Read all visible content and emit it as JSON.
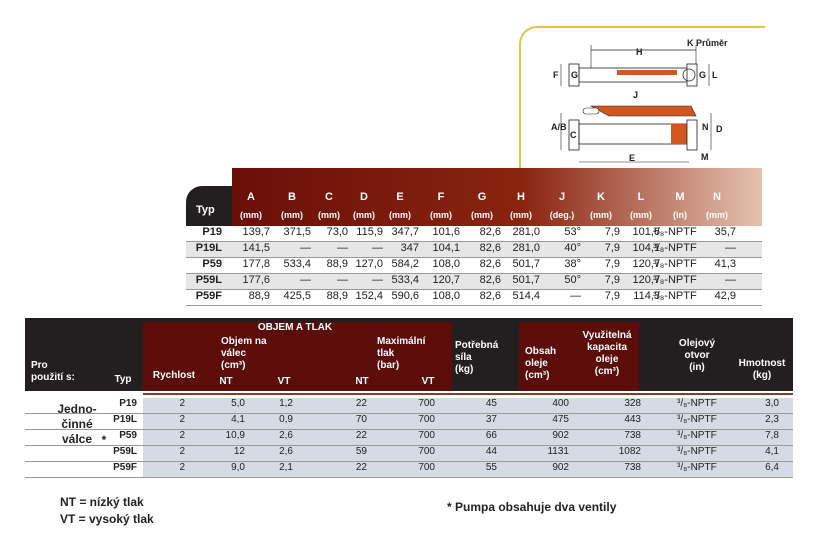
{
  "diagram": {
    "labels": [
      "H",
      "K Průměr",
      "F",
      "G",
      "G",
      "L",
      "J",
      "A/B",
      "C",
      "N",
      "D",
      "E",
      "M"
    ]
  },
  "dim_table": {
    "type_label": "Typ",
    "columns": [
      {
        "key": "A",
        "unit": "(mm)"
      },
      {
        "key": "B",
        "unit": "(mm)"
      },
      {
        "key": "C",
        "unit": "(mm)"
      },
      {
        "key": "D",
        "unit": "(mm)"
      },
      {
        "key": "E",
        "unit": "(mm)"
      },
      {
        "key": "F",
        "unit": "(mm)"
      },
      {
        "key": "G",
        "unit": "(mm)"
      },
      {
        "key": "H",
        "unit": "(mm)"
      },
      {
        "key": "J",
        "unit": "(deg.)"
      },
      {
        "key": "K",
        "unit": "(mm)"
      },
      {
        "key": "L",
        "unit": "(mm)"
      },
      {
        "key": "M",
        "unit": "(in)"
      },
      {
        "key": "N",
        "unit": "(mm)"
      }
    ],
    "rows": [
      {
        "type": "P19",
        "values": [
          "139,7",
          "371,5",
          "73,0",
          "115,9",
          "347,7",
          "101,6",
          "82,6",
          "281,0",
          "53°",
          "7,9",
          "101,6",
          "³/₈-NPTF",
          "35,7"
        ]
      },
      {
        "type": "P19L",
        "values": [
          "141,5",
          "—",
          "—",
          "—",
          "347",
          "104,1",
          "82,6",
          "281,0",
          "40°",
          "7,9",
          "104,1",
          "³/₈-NPTF",
          "—"
        ]
      },
      {
        "type": "P59",
        "values": [
          "177,8",
          "533,4",
          "88,9",
          "127,0",
          "584,2",
          "108,0",
          "82,6",
          "501,7",
          "38°",
          "7,9",
          "120,7",
          "³/₈-NPTF",
          "41,3"
        ]
      },
      {
        "type": "P59L",
        "values": [
          "177,6",
          "—",
          "—",
          "—",
          "533,4",
          "120,7",
          "82,6",
          "501,7",
          "50°",
          "7,9",
          "120,7",
          "³/₈-NPTF",
          "—"
        ]
      },
      {
        "type": "P59F",
        "values": [
          "88,9",
          "425,5",
          "88,9",
          "152,4",
          "590,6",
          "108,0",
          "82,6",
          "514,4",
          "—",
          "7,9",
          "114,3",
          "³/₈-NPTF",
          "42,9"
        ]
      }
    ]
  },
  "main_table": {
    "headers": {
      "use": "Pro\npoužití s:",
      "type": "Typ",
      "speed": "Rychlost",
      "group": "OBJEM A TLAK",
      "volume": "Objem na\nválec\n(cm³)",
      "nt1": "NT",
      "vt1": "VT",
      "maxp": "Maximální\ntlak\n(bar)",
      "nt2": "NT",
      "vt2": "VT",
      "force": "Potřebná\nsíla\n(kg)",
      "oil": "Obsah\noleje\n(cm³)",
      "usable": "Využitelná\nkapacita\noleje\n(cm³)",
      "port": "Olejový\notvor\n(in)",
      "weight": "Hmotnost\n(kg)"
    },
    "side_label": "Jedno-\nčinné\nválce",
    "side_star": "*",
    "rows": [
      {
        "type": "P19",
        "speed": "2",
        "nt": "5,0",
        "vt": "1,2",
        "pnt": "22",
        "pvt": "700",
        "force": "45",
        "oil": "400",
        "usable": "328",
        "port": "³/₈-NPTF",
        "weight": "3,0"
      },
      {
        "type": "P19L",
        "speed": "2",
        "nt": "4,1",
        "vt": "0,9",
        "pnt": "70",
        "pvt": "700",
        "force": "37",
        "oil": "475",
        "usable": "443",
        "port": "³/₈-NPTF",
        "weight": "2,3"
      },
      {
        "type": "P59",
        "speed": "2",
        "nt": "10,9",
        "vt": "2,6",
        "pnt": "22",
        "pvt": "700",
        "force": "66",
        "oil": "902",
        "usable": "738",
        "port": "³/₈-NPTF",
        "weight": "7,8"
      },
      {
        "type": "P59L",
        "speed": "2",
        "nt": "12",
        "vt": "2,6",
        "pnt": "59",
        "pvt": "700",
        "force": "44",
        "oil": "1131",
        "usable": "1082",
        "port": "³/₈-NPTF",
        "weight": "4,1"
      },
      {
        "type": "P59F",
        "speed": "2",
        "nt": "9,0",
        "vt": "2,1",
        "pnt": "22",
        "pvt": "700",
        "force": "55",
        "oil": "902",
        "usable": "738",
        "port": "³/₈-NPTF",
        "weight": "6,4"
      }
    ]
  },
  "legend": {
    "nt": "NT = nízký tlak",
    "vt": "VT = vysoký tlak",
    "note": "* Pumpa obsahuje dva ventily"
  }
}
